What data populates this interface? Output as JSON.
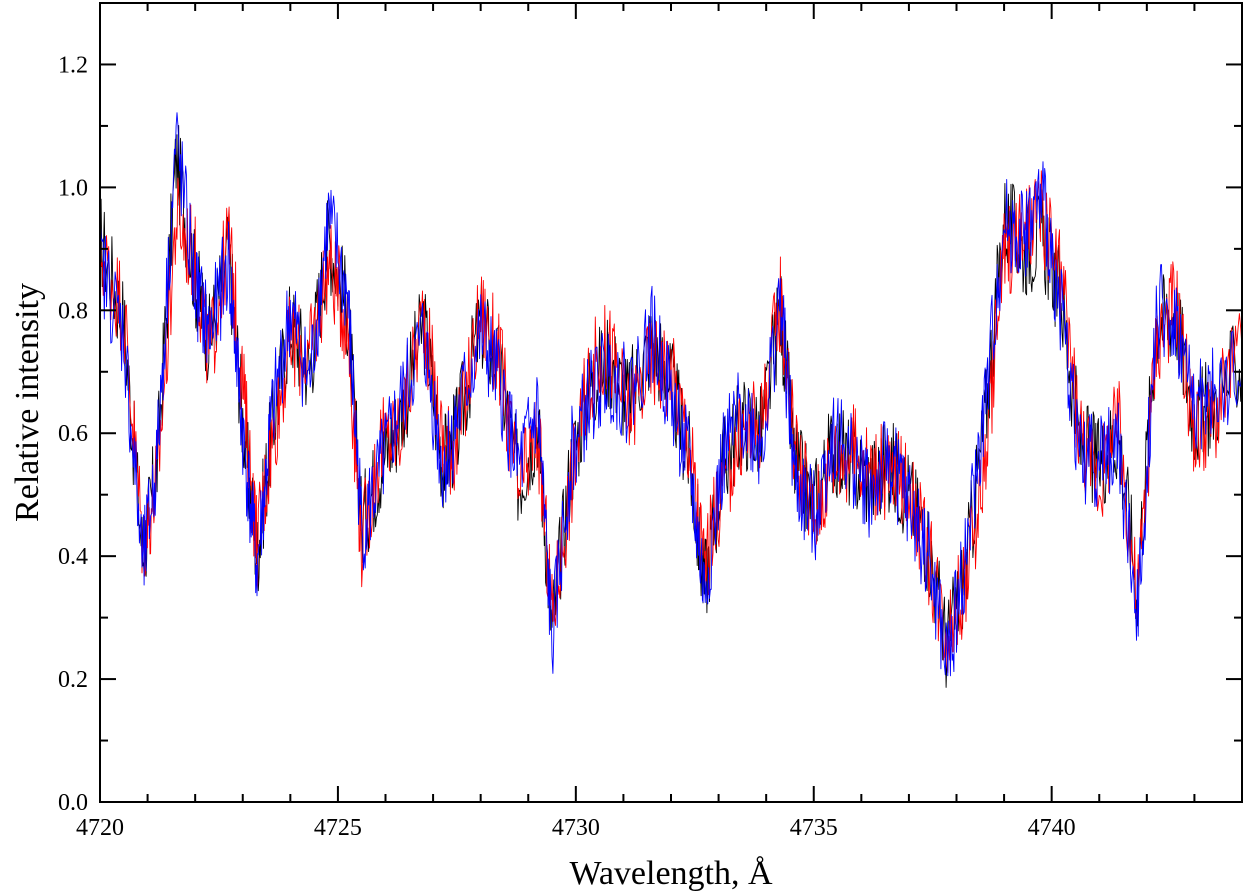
{
  "chart_data": {
    "type": "line",
    "title": "",
    "xlabel": "Wavelength, Å",
    "ylabel": "Relative intensity",
    "xlim": [
      4720,
      4744
    ],
    "ylim": [
      0.0,
      1.3
    ],
    "x_ticks": [
      4720,
      4725,
      4730,
      4735,
      4740
    ],
    "x_tick_labels": [
      "4720",
      "4725",
      "4730",
      "4735",
      "4740"
    ],
    "y_ticks": [
      0.0,
      0.2,
      0.4,
      0.6,
      0.8,
      1.0,
      1.2
    ],
    "y_tick_labels": [
      "0.0",
      "0.2",
      "0.4",
      "0.6",
      "0.8",
      "1.0",
      "1.2"
    ],
    "grid": false,
    "legend": "none",
    "series": [
      {
        "color": "#000000",
        "x": [
          4720.0,
          4720.5,
          4720.9,
          4721.2,
          4721.6,
          4722.0,
          4722.3,
          4722.7,
          4723.0,
          4723.3,
          4723.6,
          4724.0,
          4724.4,
          4724.8,
          4725.2,
          4725.5,
          4725.9,
          4726.3,
          4726.8,
          4727.2,
          4727.5,
          4728.0,
          4728.4,
          4728.8,
          4729.2,
          4729.5,
          4729.9,
          4730.3,
          4730.7,
          4731.1,
          4731.6,
          4732.0,
          4732.4,
          4732.7,
          4733.1,
          4733.5,
          4733.9,
          4734.3,
          4734.6,
          4735.0,
          4735.4,
          4735.8,
          4736.2,
          4736.6,
          4737.0,
          4737.4,
          4737.8,
          4738.2,
          4738.6,
          4739.0,
          4739.4,
          4739.8,
          4740.2,
          4740.6,
          4741.0,
          4741.4,
          4741.8,
          4742.2,
          4742.6,
          4743.0,
          4743.4,
          4744.0
        ],
        "y": [
          0.92,
          0.78,
          0.4,
          0.55,
          1.05,
          0.85,
          0.75,
          0.9,
          0.62,
          0.4,
          0.6,
          0.78,
          0.7,
          0.92,
          0.8,
          0.45,
          0.55,
          0.62,
          0.78,
          0.55,
          0.6,
          0.78,
          0.7,
          0.52,
          0.62,
          0.28,
          0.55,
          0.68,
          0.72,
          0.65,
          0.75,
          0.68,
          0.55,
          0.35,
          0.55,
          0.62,
          0.6,
          0.8,
          0.55,
          0.48,
          0.58,
          0.55,
          0.52,
          0.55,
          0.5,
          0.42,
          0.25,
          0.38,
          0.62,
          0.95,
          0.9,
          0.92,
          0.82,
          0.58,
          0.55,
          0.6,
          0.35,
          0.78,
          0.8,
          0.62,
          0.65,
          0.72
        ]
      },
      {
        "color": "#ff0000",
        "x": [
          4720.0,
          4720.5,
          4720.9,
          4721.2,
          4721.6,
          4722.0,
          4722.3,
          4722.7,
          4723.0,
          4723.3,
          4723.6,
          4724.0,
          4724.4,
          4724.8,
          4725.2,
          4725.5,
          4725.9,
          4726.3,
          4726.8,
          4727.2,
          4727.5,
          4728.0,
          4728.4,
          4728.8,
          4729.2,
          4729.5,
          4729.9,
          4730.3,
          4730.7,
          4731.1,
          4731.6,
          4732.0,
          4732.4,
          4732.7,
          4733.1,
          4733.5,
          4733.9,
          4734.3,
          4734.6,
          4735.0,
          4735.4,
          4735.8,
          4736.2,
          4736.6,
          4737.0,
          4737.4,
          4737.8,
          4738.2,
          4738.6,
          4739.0,
          4739.4,
          4739.8,
          4740.2,
          4740.6,
          4741.0,
          4741.4,
          4741.8,
          4742.2,
          4742.6,
          4743.0,
          4743.4,
          4744.0
        ],
        "y": [
          0.9,
          0.8,
          0.42,
          0.52,
          0.95,
          0.88,
          0.72,
          0.92,
          0.68,
          0.42,
          0.58,
          0.75,
          0.72,
          0.88,
          0.78,
          0.42,
          0.58,
          0.6,
          0.8,
          0.58,
          0.58,
          0.8,
          0.72,
          0.5,
          0.6,
          0.3,
          0.52,
          0.7,
          0.74,
          0.63,
          0.72,
          0.7,
          0.58,
          0.38,
          0.52,
          0.6,
          0.62,
          0.82,
          0.58,
          0.46,
          0.56,
          0.57,
          0.54,
          0.53,
          0.52,
          0.4,
          0.28,
          0.36,
          0.55,
          0.9,
          0.92,
          0.95,
          0.85,
          0.6,
          0.52,
          0.62,
          0.32,
          0.75,
          0.82,
          0.6,
          0.62,
          0.74
        ]
      },
      {
        "color": "#0000ff",
        "x": [
          4720.0,
          4720.5,
          4720.9,
          4721.2,
          4721.6,
          4722.0,
          4722.3,
          4722.7,
          4723.0,
          4723.3,
          4723.6,
          4724.0,
          4724.4,
          4724.8,
          4725.2,
          4725.5,
          4725.9,
          4726.3,
          4726.8,
          4727.2,
          4727.5,
          4728.0,
          4728.4,
          4728.8,
          4729.2,
          4729.5,
          4729.9,
          4730.3,
          4730.7,
          4731.1,
          4731.6,
          4732.0,
          4732.4,
          4732.7,
          4733.1,
          4733.5,
          4733.9,
          4734.3,
          4734.6,
          4735.0,
          4735.4,
          4735.8,
          4736.2,
          4736.6,
          4737.0,
          4737.4,
          4737.8,
          4738.2,
          4738.6,
          4739.0,
          4739.4,
          4739.8,
          4740.2,
          4740.6,
          4741.0,
          4741.4,
          4741.8,
          4742.2,
          4742.6,
          4743.0,
          4743.4,
          4744.0
        ],
        "y": [
          0.88,
          0.76,
          0.38,
          0.56,
          1.08,
          0.84,
          0.76,
          0.88,
          0.6,
          0.38,
          0.62,
          0.8,
          0.68,
          0.95,
          0.82,
          0.44,
          0.54,
          0.64,
          0.76,
          0.54,
          0.62,
          0.76,
          0.68,
          0.54,
          0.64,
          0.26,
          0.56,
          0.66,
          0.7,
          0.66,
          0.76,
          0.66,
          0.54,
          0.34,
          0.56,
          0.64,
          0.58,
          0.82,
          0.52,
          0.46,
          0.6,
          0.56,
          0.5,
          0.56,
          0.48,
          0.4,
          0.22,
          0.4,
          0.64,
          0.94,
          0.92,
          0.98,
          0.8,
          0.56,
          0.56,
          0.58,
          0.3,
          0.8,
          0.78,
          0.64,
          0.66,
          0.7
        ]
      }
    ]
  }
}
